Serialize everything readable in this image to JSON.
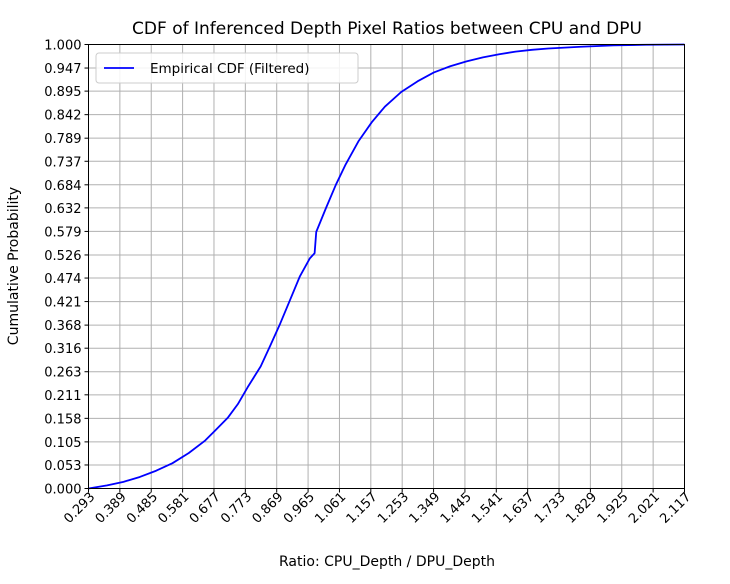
{
  "chart_data": {
    "type": "line",
    "title": "CDF of Inferenced Depth Pixel Ratios between CPU and DPU",
    "xlabel": "Ratio: CPU_Depth / DPU_Depth",
    "ylabel": "Cumulative Probability",
    "xlim": [
      0.293,
      2.117
    ],
    "ylim": [
      0.0,
      1.0
    ],
    "x_ticks": [
      "0.293",
      "0.389",
      "0.485",
      "0.581",
      "0.677",
      "0.773",
      "0.869",
      "0.965",
      "1.061",
      "1.157",
      "1.253",
      "1.349",
      "1.445",
      "1.541",
      "1.637",
      "1.733",
      "1.829",
      "1.925",
      "2.021",
      "2.117"
    ],
    "y_ticks": [
      "0.000",
      "0.053",
      "0.105",
      "0.158",
      "0.211",
      "0.263",
      "0.316",
      "0.368",
      "0.421",
      "0.474",
      "0.526",
      "0.579",
      "0.632",
      "0.684",
      "0.737",
      "0.789",
      "0.842",
      "0.895",
      "0.947",
      "1.000"
    ],
    "grid": true,
    "legend_position": "top-left",
    "series": [
      {
        "name": "Empirical CDF (Filtered)",
        "color": "#0000ff",
        "x": [
          0.293,
          0.35,
          0.4,
          0.45,
          0.5,
          0.55,
          0.6,
          0.65,
          0.68,
          0.72,
          0.75,
          0.78,
          0.82,
          0.85,
          0.88,
          0.91,
          0.94,
          0.97,
          0.985,
          0.99,
          1.0,
          1.02,
          1.05,
          1.08,
          1.12,
          1.16,
          1.2,
          1.25,
          1.3,
          1.35,
          1.4,
          1.45,
          1.5,
          1.55,
          1.6,
          1.65,
          1.7,
          1.8,
          1.9,
          2.0,
          2.117
        ],
        "y": [
          0.0,
          0.007,
          0.015,
          0.026,
          0.04,
          0.057,
          0.08,
          0.108,
          0.13,
          0.16,
          0.19,
          0.228,
          0.275,
          0.323,
          0.372,
          0.425,
          0.478,
          0.518,
          0.53,
          0.578,
          0.596,
          0.632,
          0.684,
          0.73,
          0.783,
          0.825,
          0.86,
          0.893,
          0.917,
          0.937,
          0.951,
          0.962,
          0.971,
          0.978,
          0.984,
          0.988,
          0.991,
          0.995,
          0.998,
          0.9995,
          1.0
        ]
      }
    ]
  }
}
